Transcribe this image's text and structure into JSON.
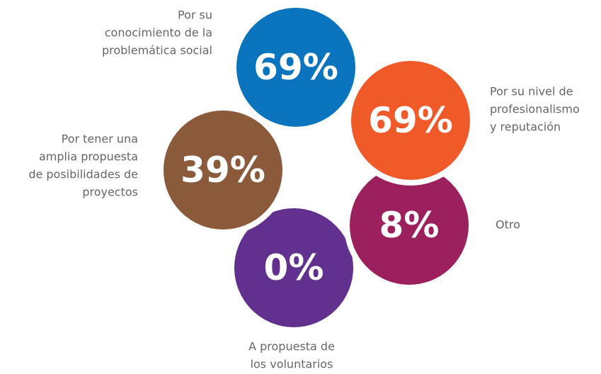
{
  "items": [
    {
      "value": "0%",
      "label_lines": [
        "A propuesta de",
        "los voluntarios"
      ],
      "color": "#62318f"
    },
    {
      "value": "39%",
      "label_lines": [
        "Por tener una",
        "amplia propuesta",
        "de posibilidades de",
        "proyectos"
      ],
      "color": "#8a5a3a"
    },
    {
      "value": "8%",
      "label_lines": [
        "Otro"
      ],
      "color": "#9c1f5e"
    },
    {
      "value": "69%",
      "label_lines": [
        "Por su nivel de",
        "profesionalismo",
        "y reputación"
      ],
      "color": "#f05a28"
    },
    {
      "value": "69%",
      "label_lines": [
        "Por su",
        "conocimiento de la",
        "problemática social"
      ],
      "color": "#0a74bf"
    }
  ]
}
